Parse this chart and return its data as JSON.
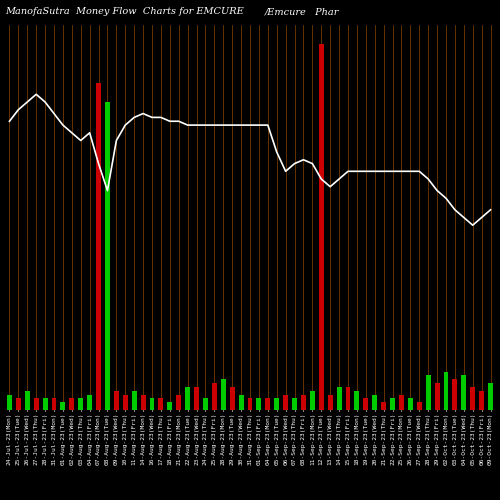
{
  "title_left": "ManofaSutra  Money Flow  Charts for EMCURE",
  "title_right": "/Emcure   Phar",
  "background_color": "#000000",
  "bar_color_pos": "#00cc00",
  "bar_color_neg": "#cc0000",
  "line_color": "#ffffff",
  "vline_color": "#8B4500",
  "n_bars": 55,
  "bar_colors": [
    "g",
    "r",
    "g",
    "r",
    "g",
    "r",
    "g",
    "r",
    "g",
    "g",
    "r",
    "g",
    "r",
    "r",
    "g",
    "r",
    "g",
    "r",
    "g",
    "r",
    "g",
    "r",
    "g",
    "r",
    "g",
    "r",
    "g",
    "r",
    "g",
    "r",
    "g",
    "r",
    "g",
    "r",
    "g",
    "r",
    "r",
    "g",
    "r",
    "g",
    "r",
    "g",
    "r",
    "g",
    "r",
    "g",
    "r",
    "g",
    "r",
    "g",
    "r",
    "g",
    "r",
    "r",
    "g"
  ],
  "bar_heights": [
    4,
    3,
    5,
    3,
    3,
    3,
    2,
    3,
    3,
    4,
    85,
    80,
    5,
    4,
    5,
    4,
    3,
    3,
    2,
    4,
    6,
    6,
    3,
    7,
    8,
    6,
    4,
    3,
    3,
    3,
    3,
    4,
    3,
    4,
    5,
    95,
    4,
    6,
    6,
    5,
    3,
    4,
    2,
    3,
    4,
    3,
    2,
    9,
    7,
    10,
    8,
    9,
    6,
    5,
    7
  ],
  "line_values": [
    75,
    78,
    80,
    82,
    80,
    77,
    74,
    72,
    70,
    72,
    64,
    57,
    70,
    74,
    76,
    77,
    76,
    76,
    75,
    75,
    74,
    74,
    74,
    74,
    74,
    74,
    74,
    74,
    74,
    74,
    67,
    62,
    64,
    65,
    64,
    60,
    58,
    60,
    62,
    62,
    62,
    62,
    62,
    62,
    62,
    62,
    62,
    60,
    57,
    55,
    52,
    50,
    48,
    50,
    52
  ],
  "xlabel_fontsize": 4.5,
  "title_fontsize": 7,
  "xlabels": [
    "24-Jul-23(Mon)",
    "25-Jul-23(Tue)",
    "26-Jul-23(Wed)",
    "27-Jul-23(Thu)",
    "28-Jul-23(Fri)",
    "31-Jul-23(Mon)",
    "01-Aug-23(Tue)",
    "02-Aug-23(Wed)",
    "03-Aug-23(Thu)",
    "04-Aug-23(Fri)",
    "07-Aug-23(Mon)",
    "08-Aug-23(Tue)",
    "09-Aug-23(Wed)",
    "10-Aug-23(Thu)",
    "11-Aug-23(Fri)",
    "14-Aug-23(Mon)",
    "16-Aug-23(Wed)",
    "17-Aug-23(Thu)",
    "18-Aug-23(Fri)",
    "21-Aug-23(Mon)",
    "22-Aug-23(Tue)",
    "23-Aug-23(Wed)",
    "24-Aug-23(Thu)",
    "25-Aug-23(Fri)",
    "28-Aug-23(Mon)",
    "29-Aug-23(Tue)",
    "30-Aug-23(Wed)",
    "31-Aug-23(Thu)",
    "01-Sep-23(Fri)",
    "04-Sep-23(Mon)",
    "05-Sep-23(Tue)",
    "06-Sep-23(Wed)",
    "07-Sep-23(Thu)",
    "08-Sep-23(Fri)",
    "11-Sep-23(Mon)",
    "12-Sep-23(Tue)",
    "13-Sep-23(Wed)",
    "14-Sep-23(Thu)",
    "15-Sep-23(Fri)",
    "18-Sep-23(Mon)",
    "19-Sep-23(Tue)",
    "20-Sep-23(Wed)",
    "21-Sep-23(Thu)",
    "22-Sep-23(Fri)",
    "25-Sep-23(Mon)",
    "26-Sep-23(Tue)",
    "27-Sep-23(Wed)",
    "28-Sep-23(Thu)",
    "29-Sep-23(Fri)",
    "02-Oct-23(Mon)",
    "03-Oct-23(Tue)",
    "04-Oct-23(Wed)",
    "05-Oct-23(Thu)",
    "06-Oct-23(Fri)",
    "09-Oct-23(Mon)"
  ]
}
